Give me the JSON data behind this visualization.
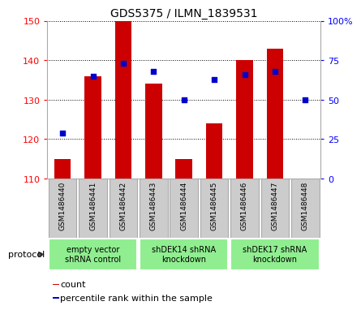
{
  "title": "GDS5375 / ILMN_1839531",
  "samples": [
    "GSM1486440",
    "GSM1486441",
    "GSM1486442",
    "GSM1486443",
    "GSM1486444",
    "GSM1486445",
    "GSM1486446",
    "GSM1486447",
    "GSM1486448"
  ],
  "bar_heights": [
    115,
    136,
    150,
    134,
    115,
    124,
    140,
    143,
    110
  ],
  "bar_base": 110,
  "percentile_ranks": [
    29,
    65,
    73,
    68,
    50,
    63,
    66,
    68,
    50
  ],
  "ylim_left": [
    110,
    150
  ],
  "ylim_right": [
    0,
    100
  ],
  "yticks_left": [
    110,
    120,
    130,
    140,
    150
  ],
  "yticks_right": [
    0,
    25,
    50,
    75,
    100
  ],
  "bar_color": "#CC0000",
  "dot_color": "#0000CC",
  "bar_width": 0.55,
  "groups": [
    {
      "label": "empty vector\nshRNA control",
      "indices": [
        0,
        1,
        2
      ],
      "color": "#90EE90"
    },
    {
      "label": "shDEK14 shRNA\nknockdown",
      "indices": [
        3,
        4,
        5
      ],
      "color": "#90EE90"
    },
    {
      "label": "shDEK17 shRNA\nknockdown",
      "indices": [
        6,
        7,
        8
      ],
      "color": "#90EE90"
    }
  ],
  "protocol_label": "protocol",
  "legend_count_label": "count",
  "legend_percentile_label": "percentile rank within the sample",
  "tick_box_color": "#cccccc",
  "tick_box_edge": "#aaaaaa"
}
